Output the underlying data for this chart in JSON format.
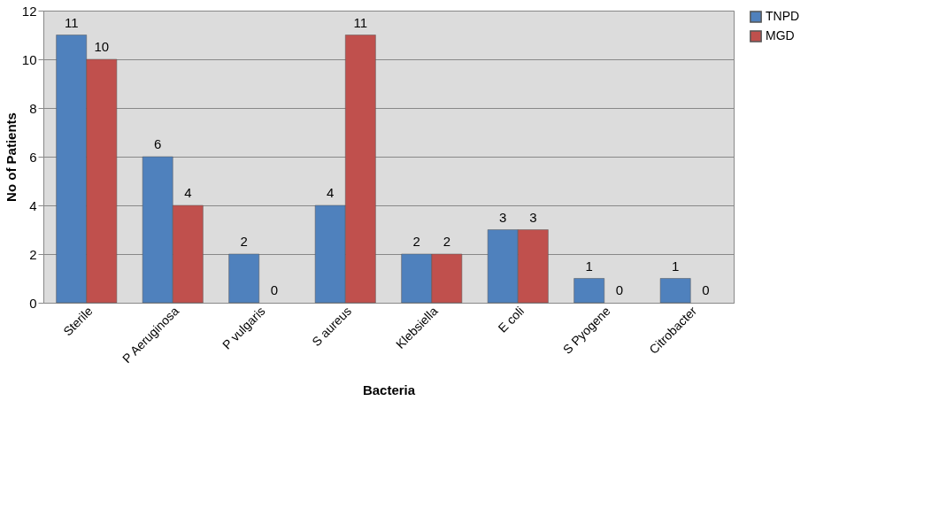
{
  "chart_data": {
    "type": "bar",
    "xlabel": "Bacteria",
    "ylabel": "No of Patients",
    "categories": [
      "Sterile",
      "P Aeruginosa",
      "P vulgaris",
      "S aureus",
      "Klebsiella",
      "E coli",
      "S Pyogene",
      "Citrobacter"
    ],
    "series": [
      {
        "name": "TNPD",
        "color": "#4f81bd",
        "values": [
          11,
          6,
          2,
          4,
          2,
          3,
          1,
          1
        ]
      },
      {
        "name": "MGD",
        "color": "#c0504d",
        "values": [
          10,
          4,
          0,
          11,
          2,
          3,
          0,
          0
        ]
      }
    ],
    "ylim": [
      0,
      12
    ],
    "yticks": [
      0,
      2,
      4,
      6,
      8,
      10,
      12
    ],
    "grid": "y",
    "legend": "right",
    "data_labels": true
  }
}
